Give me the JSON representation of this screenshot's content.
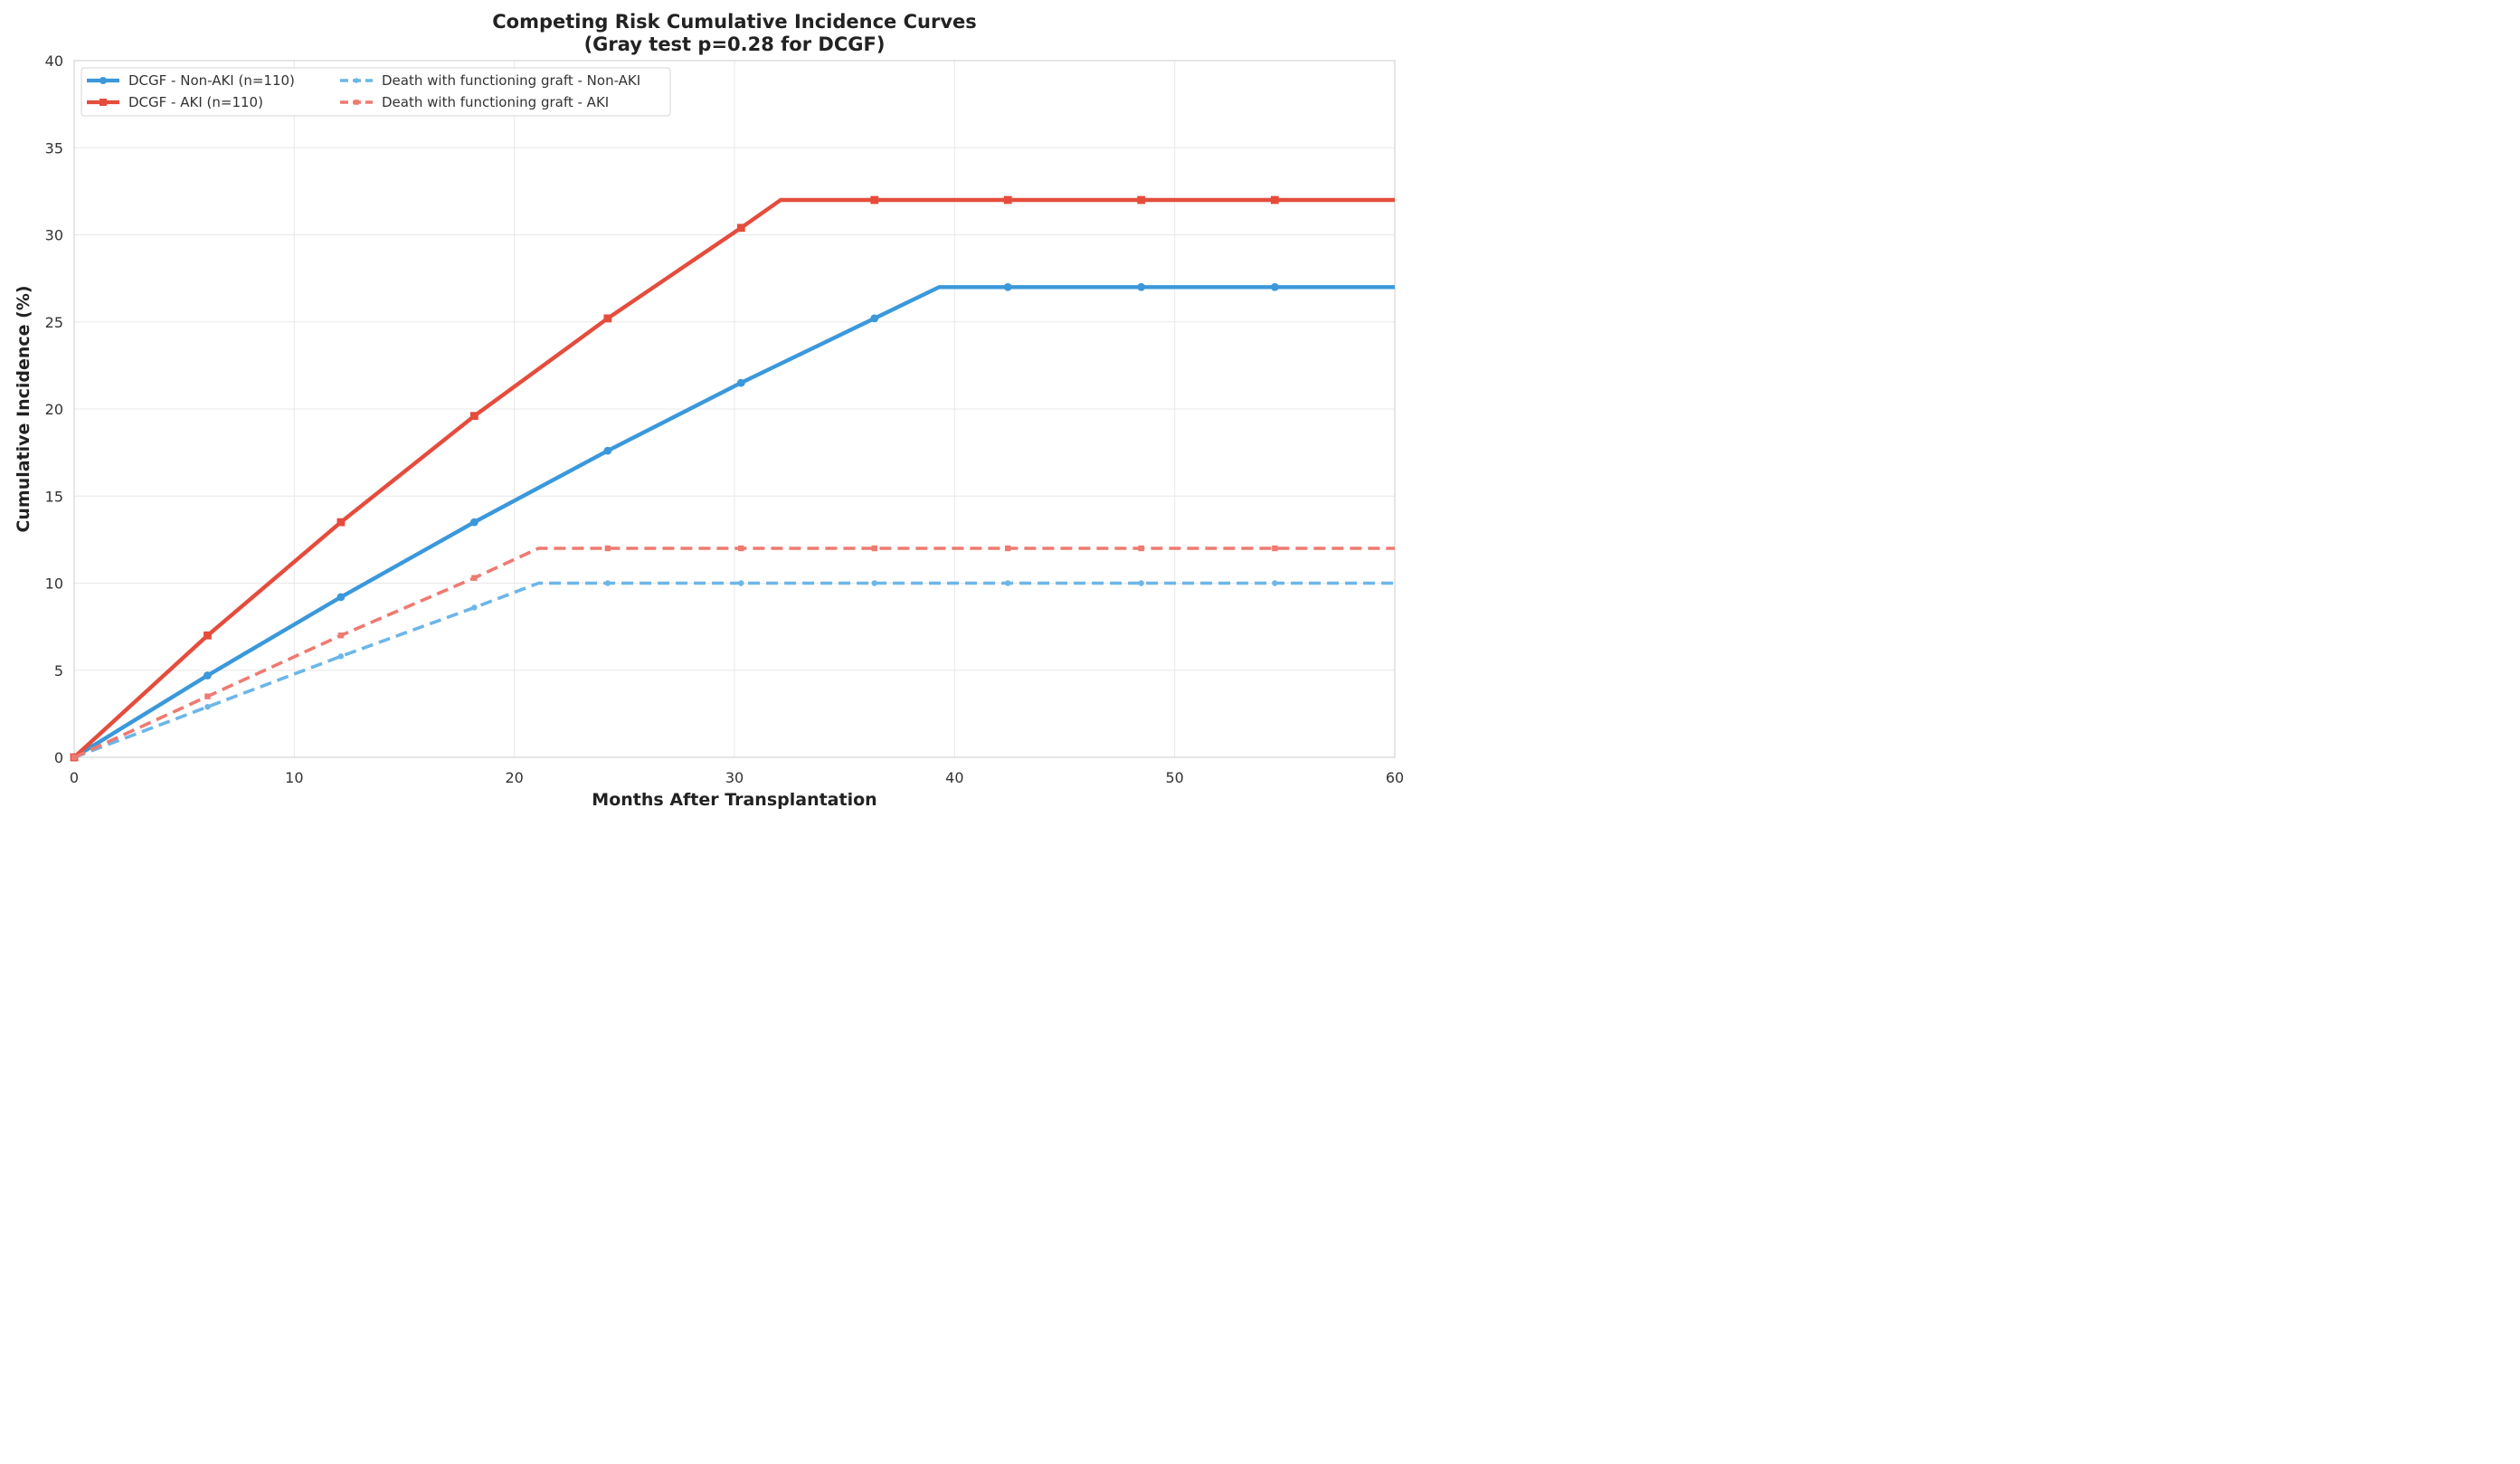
{
  "chart_data": {
    "type": "line",
    "title": "Competing Risk Cumulative Incidence Curves",
    "subtitle": "(Gray test p=0.28 for DCGF)",
    "xlabel": "Months After Transplantation",
    "ylabel": "Cumulative Incidence (%)",
    "xlim": [
      0,
      60
    ],
    "ylim": [
      0,
      40
    ],
    "xticks": [
      0,
      10,
      20,
      30,
      40,
      50,
      60
    ],
    "yticks": [
      0,
      5,
      10,
      15,
      20,
      25,
      30,
      35,
      40
    ],
    "grid": true,
    "legend_position": "top-left",
    "series": [
      {
        "name": "DCGF - Non-AKI (n=110)",
        "color": "#3a98db",
        "style": "solid",
        "marker": "circle",
        "points": [
          [
            0,
            0
          ],
          [
            6.06,
            4.7
          ],
          [
            12.12,
            9.2
          ],
          [
            18.18,
            13.5
          ],
          [
            24.24,
            17.6
          ],
          [
            30.3,
            21.5
          ],
          [
            36.36,
            25.2
          ],
          [
            39.3,
            27
          ],
          [
            42.42,
            27
          ],
          [
            48.48,
            27
          ],
          [
            54.55,
            27
          ],
          [
            60,
            27
          ]
        ],
        "marker_x": [
          6.06,
          12.12,
          18.18,
          24.24,
          30.3,
          36.36,
          42.42,
          48.48,
          54.55
        ]
      },
      {
        "name": "DCGF - AKI (n=110)",
        "color": "#e54c3c",
        "style": "solid",
        "marker": "square",
        "points": [
          [
            0,
            0
          ],
          [
            6.06,
            7.0
          ],
          [
            12.12,
            13.5
          ],
          [
            18.18,
            19.6
          ],
          [
            24.24,
            25.2
          ],
          [
            30.3,
            30.4
          ],
          [
            32.1,
            32
          ],
          [
            36.36,
            32
          ],
          [
            42.42,
            32
          ],
          [
            48.48,
            32
          ],
          [
            54.55,
            32
          ],
          [
            60,
            32
          ]
        ],
        "marker_x": [
          6.06,
          12.12,
          18.18,
          24.24,
          30.3,
          36.36,
          42.42,
          48.48,
          54.55
        ]
      },
      {
        "name": "Death with functioning graft - Non-AKI",
        "color": "#6cb6e8",
        "style": "dashed",
        "marker": "circle",
        "points": [
          [
            0,
            0
          ],
          [
            6.06,
            2.9
          ],
          [
            12.12,
            5.8
          ],
          [
            18.18,
            8.6
          ],
          [
            21.1,
            10
          ],
          [
            24.24,
            10
          ],
          [
            30.3,
            10
          ],
          [
            36.36,
            10
          ],
          [
            42.42,
            10
          ],
          [
            48.48,
            10
          ],
          [
            54.55,
            10
          ],
          [
            60,
            10
          ]
        ],
        "marker_x": [
          6.06,
          12.12,
          18.18,
          24.24,
          30.3,
          36.36,
          42.42,
          48.48,
          54.55
        ]
      },
      {
        "name": "Death with functioning graft - AKI",
        "color": "#ee7a70",
        "style": "dashed",
        "marker": "square",
        "points": [
          [
            0,
            0
          ],
          [
            6.06,
            3.5
          ],
          [
            12.12,
            7.0
          ],
          [
            18.18,
            10.3
          ],
          [
            21.1,
            12
          ],
          [
            24.24,
            12
          ],
          [
            30.3,
            12
          ],
          [
            36.36,
            12
          ],
          [
            42.42,
            12
          ],
          [
            48.48,
            12
          ],
          [
            54.55,
            12
          ],
          [
            60,
            12
          ]
        ],
        "marker_x": [
          6.06,
          12.12,
          18.18,
          24.24,
          30.3,
          36.36,
          42.42,
          48.48,
          54.55
        ]
      }
    ]
  }
}
